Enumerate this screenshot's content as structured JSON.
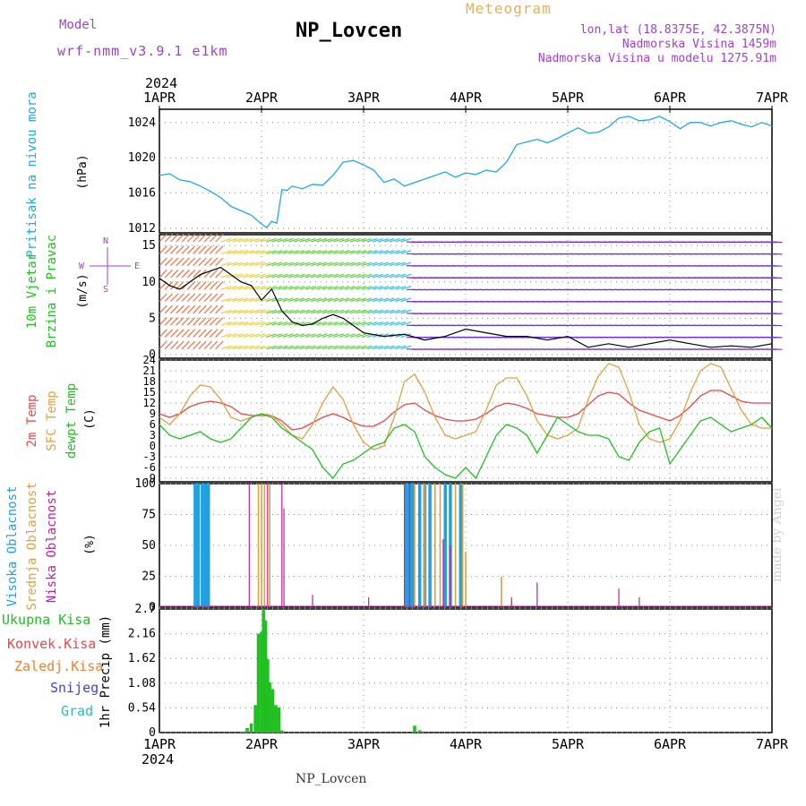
{
  "header": {
    "model_label": "Model",
    "model_name": "wrf-nmm_v3.9.1 e1km",
    "station": "NP_Lovcen",
    "meteogram": "Meteogram",
    "coords": "lon,lat (18.8375E, 42.3875N)",
    "elevation": "Nadmorska Visina 1459m",
    "elevation_model": "Nadmorska Visina u modelu 1275.91m"
  },
  "footer_station": "NP_Lovcen",
  "credit": "made by Angel",
  "year_top": "2024",
  "year_bottom": "2024",
  "colors": {
    "pressure": "#20a8e8",
    "temp2m": "#e84848",
    "sfc": "#e0a040",
    "dewpt": "#20c020",
    "high_cloud": "#20a0e0",
    "mid_cloud": "#e0a040",
    "low_cloud": "#c020a0",
    "precip": "#20c020",
    "convective": "#e84848",
    "frozen": "#f08030",
    "snow": "#4040e0",
    "hail": "#20c0c0",
    "wind_axis_purple": "#a040d0"
  },
  "chart_data": [
    {
      "type": "line",
      "title": "",
      "ylabel": "Pritisak na nivou mora",
      "unit": "(hPa)",
      "ylim": [
        1011.5,
        1025.5
      ],
      "yticks": [
        "1012",
        "1016",
        "1020",
        "1024"
      ],
      "xlim": [
        0,
        6
      ],
      "xticks": [
        "1APR",
        "2APR",
        "3APR",
        "4APR",
        "5APR",
        "6APR",
        "7APR"
      ],
      "grid": true,
      "series": [
        {
          "x": [
            0,
            0.1,
            0.2,
            0.3,
            0.4,
            0.5,
            0.6,
            0.7,
            0.8,
            0.9,
            1.0,
            1.05,
            1.1,
            1.15,
            1.2,
            1.25,
            1.3,
            1.4,
            1.5,
            1.6,
            1.7,
            1.8,
            1.9,
            2.0,
            2.1,
            2.2,
            2.3,
            2.4,
            2.5,
            2.6,
            2.7,
            2.8,
            2.9,
            3.0,
            3.1,
            3.2,
            3.3,
            3.4,
            3.5,
            3.6,
            3.7,
            3.8,
            3.9,
            4.0,
            4.1,
            4.2,
            4.3,
            4.4,
            4.5,
            4.6,
            4.7,
            4.8,
            4.9,
            5.0,
            5.1,
            5.2,
            5.3,
            5.4,
            5.5,
            5.6,
            5.7,
            5.8,
            5.9,
            6.0
          ],
          "y": [
            1018,
            1018.2,
            1017.5,
            1017.3,
            1016.8,
            1016.2,
            1015.5,
            1014.5,
            1014.0,
            1013.5,
            1012.5,
            1012.1,
            1012.8,
            1012.6,
            1016.4,
            1016.3,
            1016.8,
            1016.5,
            1017.0,
            1016.9,
            1018.0,
            1019.5,
            1019.7,
            1019.2,
            1018.6,
            1017.2,
            1017.6,
            1016.8,
            1017.2,
            1017.6,
            1018.0,
            1018.4,
            1017.8,
            1018.3,
            1018.1,
            1018.6,
            1018.4,
            1019.5,
            1021.5,
            1021.8,
            1022.1,
            1021.7,
            1022.2,
            1022.8,
            1023.4,
            1022.8,
            1022.9,
            1023.5,
            1024.5,
            1024.7,
            1024.2,
            1024.3,
            1024.7,
            1024.1,
            1023.3,
            1024.0,
            1024.0,
            1023.6,
            1024.0,
            1024.2,
            1023.8,
            1023.5,
            1024.0,
            1023.6
          ]
        }
      ]
    },
    {
      "type": "line",
      "title": "",
      "ylabel": [
        "10m Vjetar",
        "Brzina i Pravac"
      ],
      "unit": "(m/s)",
      "compass": [
        "N",
        "W",
        "E",
        "S"
      ],
      "ylim": [
        -0.5,
        16.5
      ],
      "yticks": [
        "0",
        "5",
        "10",
        "15"
      ],
      "grid": true,
      "series": [
        {
          "name": "speed",
          "x": [
            0,
            0.1,
            0.2,
            0.3,
            0.4,
            0.5,
            0.6,
            0.7,
            0.8,
            0.9,
            1.0,
            1.1,
            1.2,
            1.3,
            1.4,
            1.5,
            1.6,
            1.7,
            1.8,
            1.9,
            2.0,
            2.2,
            2.4,
            2.6,
            2.8,
            3.0,
            3.2,
            3.4,
            3.6,
            3.8,
            4.0,
            4.2,
            4.4,
            4.6,
            4.8,
            5.0,
            5.2,
            5.4,
            5.6,
            5.8,
            6.0
          ],
          "y": [
            10.5,
            9.5,
            9.0,
            10.0,
            11.0,
            11.5,
            12.0,
            11.0,
            10.0,
            9.5,
            7.5,
            9.0,
            6.0,
            4.5,
            4.0,
            4.2,
            5.0,
            5.5,
            5.0,
            4.0,
            3.0,
            2.5,
            2.8,
            2.0,
            2.5,
            3.5,
            3.0,
            2.5,
            2.5,
            2.0,
            2.5,
            1.0,
            1.5,
            1.0,
            1.5,
            2.0,
            1.5,
            1.0,
            1.2,
            1.0,
            1.5
          ]
        }
      ]
    },
    {
      "type": "line",
      "title": "",
      "ylabel": [
        "2m Temp",
        "SFC Temp",
        "dewpt Temp"
      ],
      "unit": "(C)",
      "ylim": [
        -10,
        24
      ],
      "yticks": [
        "-9",
        "-6",
        "-3",
        "0",
        "3",
        "6",
        "9",
        "12",
        "15",
        "18",
        "21",
        "24"
      ],
      "grid": true,
      "series": [
        {
          "name": "2m Temp",
          "x": [
            0,
            0.1,
            0.2,
            0.3,
            0.4,
            0.5,
            0.6,
            0.7,
            0.8,
            0.9,
            1.0,
            1.1,
            1.2,
            1.3,
            1.4,
            1.5,
            1.6,
            1.7,
            1.8,
            1.9,
            2.0,
            2.1,
            2.2,
            2.3,
            2.4,
            2.5,
            2.6,
            2.7,
            2.8,
            2.9,
            3.0,
            3.1,
            3.2,
            3.3,
            3.4,
            3.5,
            3.6,
            3.7,
            3.8,
            3.9,
            4.0,
            4.1,
            4.2,
            4.3,
            4.4,
            4.5,
            4.6,
            4.7,
            4.8,
            4.9,
            5.0,
            5.1,
            5.2,
            5.3,
            5.4,
            5.5,
            5.6,
            5.7,
            5.8,
            5.9,
            6.0
          ],
          "y": [
            9,
            8,
            9,
            11,
            12,
            12.5,
            12,
            11,
            9,
            8.5,
            8.5,
            8.5,
            7,
            4.5,
            5,
            6.5,
            8,
            9,
            8,
            6.5,
            5.5,
            5.5,
            7,
            9.5,
            11.5,
            12,
            10,
            8.5,
            7.5,
            7,
            7,
            7.5,
            9,
            11,
            12,
            11.5,
            10.5,
            9,
            8.5,
            8,
            8,
            9,
            11.5,
            14,
            15,
            14.5,
            12,
            10,
            9,
            8,
            7,
            8.5,
            11,
            14,
            15.5,
            15.5,
            14,
            12.5,
            12,
            12,
            12
          ]
        },
        {
          "name": "SFC Temp",
          "x": [
            0,
            0.1,
            0.2,
            0.3,
            0.4,
            0.5,
            0.6,
            0.7,
            0.8,
            0.9,
            1.0,
            1.1,
            1.2,
            1.3,
            1.4,
            1.5,
            1.6,
            1.7,
            1.8,
            1.9,
            2.0,
            2.1,
            2.2,
            2.3,
            2.4,
            2.5,
            2.6,
            2.7,
            2.8,
            2.9,
            3.0,
            3.1,
            3.2,
            3.3,
            3.4,
            3.5,
            3.6,
            3.7,
            3.8,
            3.9,
            4.0,
            4.1,
            4.2,
            4.3,
            4.4,
            4.5,
            4.6,
            4.7,
            4.8,
            4.9,
            5.0,
            5.1,
            5.2,
            5.3,
            5.4,
            5.5,
            5.6,
            5.7,
            5.8,
            5.9,
            6.0
          ],
          "y": [
            8,
            6,
            9,
            14,
            17,
            16.5,
            13,
            8,
            7,
            8,
            9,
            8.5,
            6,
            3,
            2,
            6,
            12,
            16.5,
            13,
            6,
            1,
            -1,
            0,
            8,
            18,
            20,
            15,
            8,
            3,
            2,
            3,
            4,
            10,
            17,
            19,
            19,
            14,
            7,
            3,
            2,
            3,
            5,
            13,
            19.5,
            23,
            22,
            15,
            6,
            2,
            1,
            2,
            7,
            15,
            21,
            23,
            22,
            16,
            10,
            6,
            5,
            5
          ]
        },
        {
          "name": "dewpt Temp",
          "x": [
            0,
            0.1,
            0.2,
            0.3,
            0.4,
            0.5,
            0.6,
            0.7,
            0.8,
            0.9,
            1.0,
            1.1,
            1.2,
            1.3,
            1.4,
            1.5,
            1.6,
            1.7,
            1.8,
            1.9,
            2.0,
            2.1,
            2.2,
            2.3,
            2.4,
            2.5,
            2.6,
            2.7,
            2.8,
            2.9,
            3.0,
            3.1,
            3.2,
            3.3,
            3.4,
            3.5,
            3.6,
            3.7,
            3.8,
            3.9,
            4.0,
            4.1,
            4.2,
            4.3,
            4.4,
            4.5,
            4.6,
            4.7,
            4.8,
            4.9,
            5.0,
            5.1,
            5.2,
            5.3,
            5.4,
            5.5,
            5.6,
            5.7,
            5.8,
            5.9,
            6.0
          ],
          "y": [
            6,
            3,
            2,
            3,
            4,
            2,
            1,
            2,
            5,
            8,
            9,
            8,
            5,
            3,
            1,
            -1,
            -6,
            -9,
            -5,
            -4,
            -2,
            0,
            1,
            5,
            6,
            4,
            -3,
            -6,
            -8,
            -9,
            -6,
            -9,
            -3,
            3,
            6,
            5,
            3,
            -2,
            3,
            8,
            6,
            4,
            3,
            3,
            2,
            -3,
            -4,
            1,
            4,
            5,
            -5,
            -1,
            3,
            7,
            8,
            6,
            4,
            5,
            6,
            8,
            5
          ]
        }
      ]
    },
    {
      "type": "bar",
      "title": "",
      "ylabel": [
        "Visoka Oblacnost",
        "Srednja Oblacnost",
        "Niska Oblacnost"
      ],
      "unit": "(%)",
      "ylim": [
        0,
        100
      ],
      "yticks": [
        "0",
        "25",
        "50",
        "75",
        "100"
      ],
      "grid": true,
      "series": [
        {
          "name": "Visoka Oblacnost",
          "x": [
            0.35,
            0.38,
            0.42,
            0.45,
            0.48,
            2.42,
            2.45,
            2.48,
            2.55,
            2.6,
            2.65,
            2.8,
            2.85,
            2.95
          ],
          "values": [
            100,
            100,
            100,
            100,
            100,
            100,
            100,
            100,
            100,
            100,
            100,
            100,
            100,
            100
          ]
        },
        {
          "name": "Srednja Oblacnost",
          "x": [
            0.97,
            1.0,
            1.03,
            1.08,
            2.5,
            2.6,
            2.7,
            2.75,
            2.9,
            2.97,
            3.0,
            3.35,
            3.45
          ],
          "values": [
            100,
            100,
            100,
            100,
            100,
            100,
            100,
            100,
            100,
            100,
            45,
            25,
            5
          ]
        },
        {
          "name": "Niska Oblacnost",
          "x": [
            0.88,
            1.06,
            1.2,
            1.22,
            1.5,
            2.05,
            2.4,
            2.45,
            2.78,
            2.85,
            3.45,
            3.7,
            4.5,
            4.7
          ],
          "values": [
            100,
            100,
            100,
            80,
            10,
            8,
            100,
            100,
            55,
            50,
            8,
            20,
            15,
            8
          ]
        }
      ]
    },
    {
      "type": "bar",
      "title": "",
      "ylabel": "1hr Precip",
      "unit": "(mm)",
      "legend": [
        "Ukupna Kisa",
        "Konvek.Kisa",
        "Zaledj.Kisa",
        "Snijeg",
        "Grad"
      ],
      "ylim": [
        0,
        2.7
      ],
      "yticks": [
        "0",
        "0.54",
        "1.08",
        "1.62",
        "2.16",
        "2.7"
      ],
      "grid": true,
      "xticks": [
        "1APR",
        "2APR",
        "3APR",
        "4APR",
        "5APR",
        "6APR",
        "7APR"
      ],
      "x": [
        0.82,
        0.86,
        0.9,
        0.94,
        0.97,
        1.0,
        1.02,
        1.04,
        1.06,
        1.08,
        1.11,
        1.14,
        1.17,
        1.2,
        2.5,
        2.55
      ],
      "values": [
        0.02,
        0.1,
        0.2,
        0.6,
        2.16,
        2.2,
        2.7,
        2.45,
        1.6,
        1.1,
        0.95,
        0.6,
        0.55,
        0.05,
        0.15,
        0.05
      ]
    }
  ]
}
